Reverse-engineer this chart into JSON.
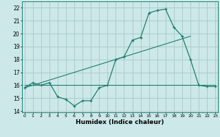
{
  "title": "",
  "xlabel": "Humidex (Indice chaleur)",
  "background_color": "#cce8e8",
  "grid_color": "#aacccc",
  "line_color": "#1a7a6e",
  "x_hours": [
    0,
    1,
    2,
    3,
    4,
    5,
    6,
    7,
    8,
    9,
    10,
    11,
    12,
    13,
    14,
    15,
    16,
    17,
    18,
    19,
    20,
    21,
    22,
    23
  ],
  "y_humidex": [
    15.8,
    16.2,
    16.0,
    16.2,
    15.1,
    14.9,
    14.4,
    14.8,
    14.8,
    15.8,
    16.0,
    18.0,
    18.2,
    19.5,
    19.7,
    21.6,
    21.8,
    21.9,
    20.5,
    19.8,
    18.0,
    16.0,
    15.9,
    15.9
  ],
  "y_trend1_start": 15.8,
  "y_trend1_end": 19.8,
  "x_trend1_start": 0,
  "x_trend1_end": 20,
  "y_trend2": 16.0,
  "x_trend2_start": 0,
  "x_trend2_end": 23,
  "ylim_min": 13.9,
  "ylim_max": 22.5,
  "xlim_min": -0.3,
  "xlim_max": 23.3,
  "yticks": [
    14,
    15,
    16,
    17,
    18,
    19,
    20,
    21,
    22
  ],
  "xticks": [
    0,
    1,
    2,
    3,
    4,
    5,
    6,
    7,
    8,
    9,
    10,
    11,
    12,
    13,
    14,
    15,
    16,
    17,
    18,
    19,
    20,
    21,
    22,
    23
  ]
}
